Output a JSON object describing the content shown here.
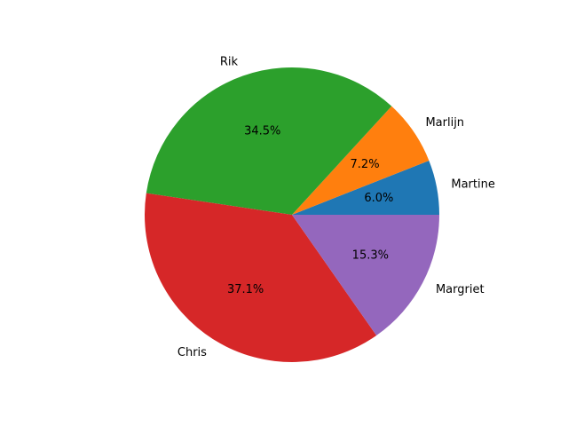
{
  "chart_data": {
    "type": "pie",
    "title": "",
    "labels": [
      "Martine",
      "Marlijn",
      "Rik",
      "Chris",
      "Margriet"
    ],
    "values": [
      6.0,
      7.2,
      34.5,
      37.1,
      15.3
    ],
    "percent_labels": [
      "6.0%",
      "7.2%",
      "34.5%",
      "37.1%",
      "15.3%"
    ],
    "colors": [
      "#1f77b4",
      "#ff7f0e",
      "#2ca02c",
      "#d62728",
      "#9467bd"
    ],
    "start_angle_deg": 0,
    "direction": "counterclockwise",
    "legend": "none"
  }
}
